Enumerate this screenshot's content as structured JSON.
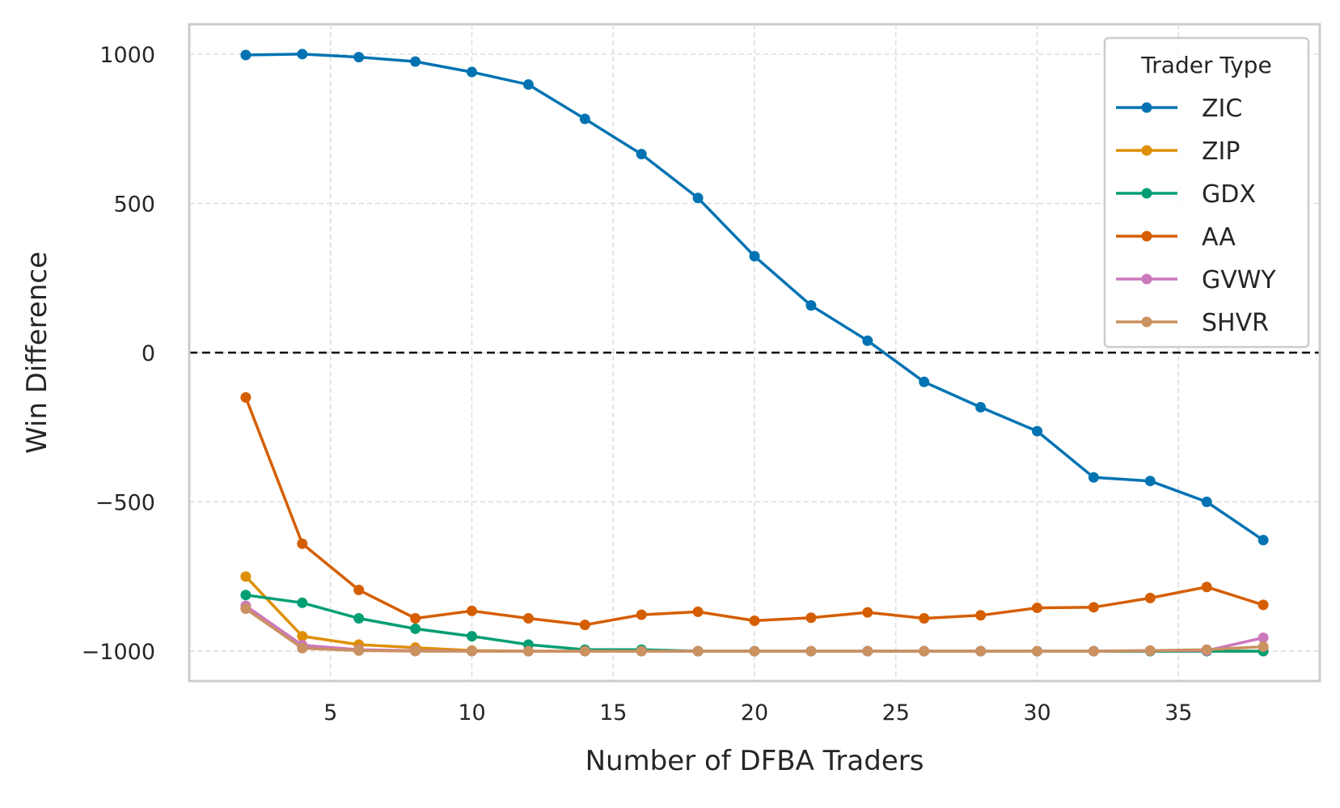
{
  "chart_data": {
    "type": "line",
    "title": "",
    "xlabel": "Number of DFBA Traders",
    "ylabel": "Win Difference",
    "xlim": [
      0,
      40
    ],
    "ylim": [
      -1100,
      1100
    ],
    "xticks": [
      5,
      10,
      15,
      20,
      25,
      30,
      35
    ],
    "yticks": [
      1000,
      500,
      0,
      -500,
      -1000
    ],
    "ytick_labels": [
      "1000",
      "500",
      "0",
      "−500",
      "−1000"
    ],
    "grid": true,
    "reference_line": {
      "y": 0,
      "style": "dashed",
      "color": "#000000"
    },
    "legend": {
      "title": "Trader Type",
      "placement": "top-right"
    },
    "x": [
      2,
      4,
      6,
      8,
      10,
      12,
      14,
      16,
      18,
      20,
      22,
      24,
      26,
      28,
      30,
      32,
      34,
      36,
      38
    ],
    "series": [
      {
        "name": "ZIC",
        "color": "#0173b2",
        "values": [
          997,
          1000,
          990,
          975,
          940,
          898,
          783,
          665,
          518,
          323,
          158,
          40,
          -98,
          -183,
          -263,
          -418,
          -430,
          -500,
          -628
        ]
      },
      {
        "name": "ZIP",
        "color": "#de8f05",
        "values": [
          -750,
          -950,
          -978,
          -988,
          -998,
          -1000,
          -1000,
          -1000,
          -1000,
          -1000,
          -1000,
          -1000,
          -1000,
          -1000,
          -1000,
          -1000,
          -1000,
          -1000,
          -1000
        ]
      },
      {
        "name": "GDX",
        "color": "#029e73",
        "values": [
          -812,
          -838,
          -890,
          -925,
          -950,
          -978,
          -995,
          -995,
          -1000,
          -1000,
          -1000,
          -1000,
          -1000,
          -1000,
          -1000,
          -1000,
          -1000,
          -1000,
          -1000
        ]
      },
      {
        "name": "AA",
        "color": "#d55e00",
        "values": [
          -150,
          -640,
          -795,
          -890,
          -865,
          -890,
          -912,
          -878,
          -868,
          -898,
          -888,
          -870,
          -890,
          -880,
          -855,
          -853,
          -822,
          -785,
          -845
        ]
      },
      {
        "name": "GVWY",
        "color": "#cc78bc",
        "values": [
          -848,
          -980,
          -995,
          -998,
          -1000,
          -1000,
          -1000,
          -1000,
          -1000,
          -1000,
          -1000,
          -1000,
          -1000,
          -1000,
          -1000,
          -1000,
          -998,
          -998,
          -955
        ]
      },
      {
        "name": "SHVR",
        "color": "#ca9161",
        "values": [
          -858,
          -990,
          -998,
          -1000,
          -1000,
          -1000,
          -1000,
          -1000,
          -1000,
          -1000,
          -1000,
          -1000,
          -1000,
          -1000,
          -1000,
          -1000,
          -998,
          -995,
          -985
        ]
      }
    ]
  }
}
